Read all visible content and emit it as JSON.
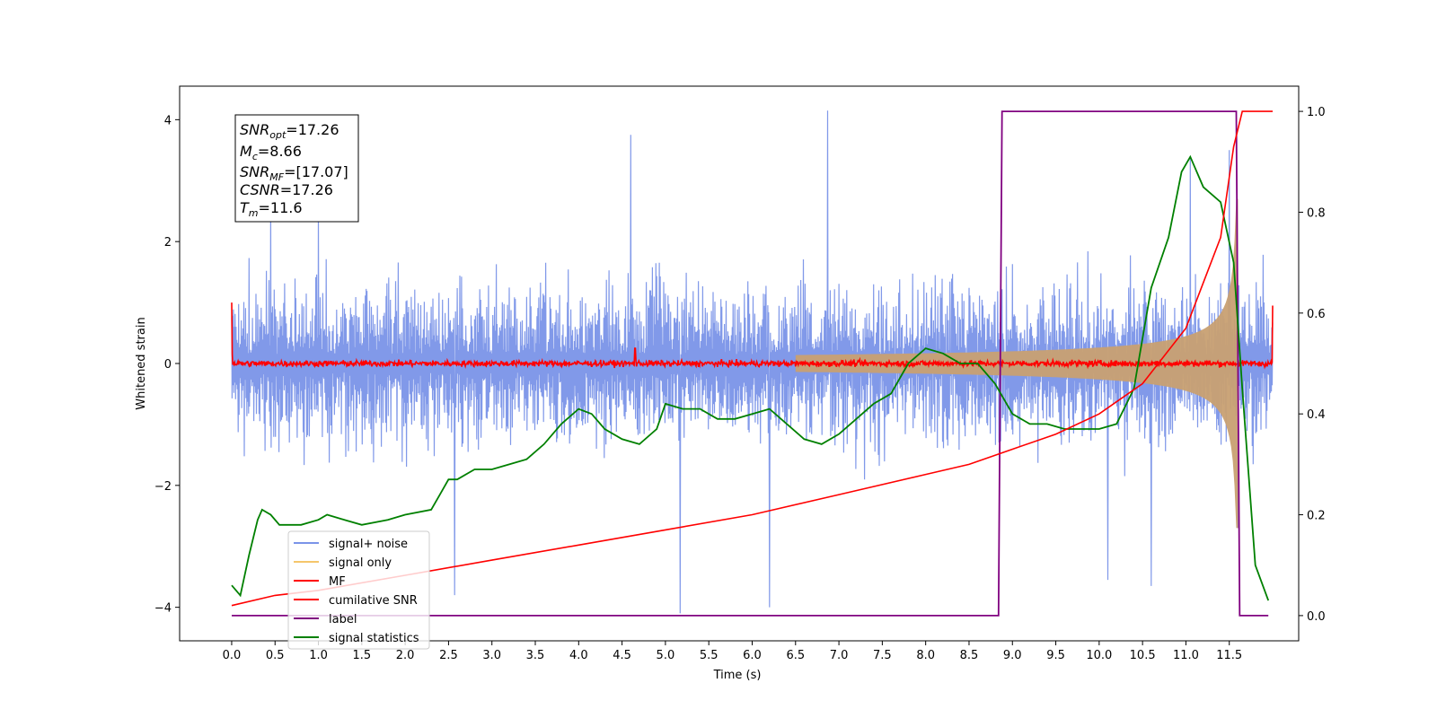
{
  "chart_data": {
    "type": "line",
    "title": "",
    "xlabel": "Time (s)",
    "ylabel": "Whitened strain",
    "xlim": [
      -0.6,
      12.3
    ],
    "ylim": [
      -4.55,
      4.55
    ],
    "y2lim": [
      -0.05,
      1.05
    ],
    "x_ticks": [
      "0.0",
      "0.5",
      "1.0",
      "1.5",
      "2.0",
      "2.5",
      "3.0",
      "3.5",
      "4.0",
      "4.5",
      "5.0",
      "5.5",
      "6.0",
      "6.5",
      "7.0",
      "7.5",
      "8.0",
      "8.5",
      "9.0",
      "9.5",
      "10.0",
      "10.5",
      "11.0",
      "11.5"
    ],
    "y_ticks": [
      "4",
      "2",
      "0",
      "−2",
      "−4"
    ],
    "y2_ticks": [
      "1.0",
      "0.8",
      "0.6",
      "0.4",
      "0.2",
      "0.0"
    ],
    "grid": false,
    "legend_position": "lower-left",
    "legend": [
      {
        "name": "signal+ noise",
        "color": "#7a94e8"
      },
      {
        "name": "signal only",
        "color": "#f5c66b"
      },
      {
        "name": "MF",
        "color": "#ff0000"
      },
      {
        "name": "cumilative SNR",
        "color": "#ff0000"
      },
      {
        "name": "label",
        "color": "#800080"
      },
      {
        "name": "signal statistics",
        "color": "#008000"
      }
    ],
    "annotation": {
      "lines": [
        {
          "sym": "SNR",
          "sub": "opt",
          "val": "=17.26"
        },
        {
          "sym": "M",
          "sub": "c",
          "val": "=8.66"
        },
        {
          "sym": "SNR",
          "sub": "MF",
          "val": "=[17.07]"
        },
        {
          "sym": "CSNR",
          "sub": "",
          "val": "=17.26"
        },
        {
          "sym": "T",
          "sub": "m",
          "val": "=11.6"
        }
      ]
    },
    "series": [
      {
        "name": "signal+ noise",
        "color": "#7a94e8",
        "axis": "left",
        "x_range": [
          0.0,
          12.0
        ],
        "band_lower": -1.6,
        "band_upper": 1.6,
        "peaks": [
          [
            0.45,
            2.6
          ],
          [
            1.0,
            2.5
          ],
          [
            4.6,
            3.75
          ],
          [
            6.87,
            4.15
          ],
          [
            11.5,
            3.5
          ],
          [
            11.05,
            3.4
          ]
        ],
        "troughs": [
          [
            5.17,
            -4.1
          ],
          [
            6.2,
            -4.0
          ],
          [
            2.57,
            -3.8
          ],
          [
            10.1,
            -3.55
          ],
          [
            10.6,
            -3.65
          ],
          [
            11.6,
            -2.7
          ]
        ]
      },
      {
        "name": "signal only",
        "color": "#c8a072",
        "axis": "left",
        "envelope": {
          "t_merge": 11.6,
          "amp_at_8": 0.08,
          "amp_at_11": 0.45,
          "amp_max": 2.7
        }
      },
      {
        "name": "MF",
        "color": "#ff0000",
        "axis": "left",
        "x_range": [
          0.0,
          12.0
        ],
        "baseline": 0.0,
        "noise_amp": 0.07,
        "edge_values": [
          [
            0.0,
            1.0
          ],
          [
            12.0,
            0.95
          ]
        ]
      },
      {
        "name": "cumilative SNR",
        "color": "#ff0000",
        "axis": "right",
        "x": [
          0.0,
          0.5,
          1.0,
          2.0,
          3.0,
          4.0,
          5.0,
          6.0,
          7.0,
          8.0,
          8.5,
          9.0,
          9.5,
          10.0,
          10.5,
          11.0,
          11.4,
          11.55,
          11.65,
          12.0
        ],
        "values": [
          0.02,
          0.04,
          0.05,
          0.08,
          0.11,
          0.14,
          0.17,
          0.2,
          0.24,
          0.28,
          0.3,
          0.33,
          0.36,
          0.4,
          0.46,
          0.57,
          0.75,
          0.93,
          1.0,
          1.0
        ]
      },
      {
        "name": "label",
        "color": "#800080",
        "axis": "right",
        "x": [
          0.0,
          8.84,
          8.88,
          11.58,
          11.62,
          11.95
        ],
        "values": [
          0.0,
          0.0,
          1.0,
          1.0,
          0.0,
          0.0
        ]
      },
      {
        "name": "signal statistics",
        "color": "#008000",
        "axis": "right",
        "x": [
          0.0,
          0.1,
          0.2,
          0.3,
          0.35,
          0.45,
          0.55,
          0.6,
          0.7,
          0.8,
          1.0,
          1.1,
          1.3,
          1.5,
          1.8,
          2.0,
          2.3,
          2.4,
          2.5,
          2.6,
          2.8,
          3.0,
          3.2,
          3.4,
          3.6,
          3.8,
          4.0,
          4.15,
          4.3,
          4.5,
          4.7,
          4.9,
          5.0,
          5.2,
          5.4,
          5.6,
          5.8,
          6.0,
          6.2,
          6.4,
          6.6,
          6.8,
          7.0,
          7.2,
          7.4,
          7.6,
          7.8,
          8.0,
          8.2,
          8.4,
          8.6,
          8.8,
          9.0,
          9.2,
          9.4,
          9.6,
          9.8,
          10.0,
          10.2,
          10.4,
          10.6,
          10.8,
          10.95,
          11.05,
          11.2,
          11.4,
          11.55,
          11.65,
          11.8,
          11.95
        ],
        "values": [
          0.06,
          0.04,
          0.12,
          0.19,
          0.21,
          0.2,
          0.18,
          0.18,
          0.18,
          0.18,
          0.19,
          0.2,
          0.19,
          0.18,
          0.19,
          0.2,
          0.21,
          0.24,
          0.27,
          0.27,
          0.29,
          0.29,
          0.3,
          0.31,
          0.34,
          0.38,
          0.41,
          0.4,
          0.37,
          0.35,
          0.34,
          0.37,
          0.42,
          0.41,
          0.41,
          0.39,
          0.39,
          0.4,
          0.41,
          0.38,
          0.35,
          0.34,
          0.36,
          0.39,
          0.42,
          0.44,
          0.5,
          0.53,
          0.52,
          0.5,
          0.5,
          0.46,
          0.4,
          0.38,
          0.38,
          0.37,
          0.37,
          0.37,
          0.38,
          0.45,
          0.65,
          0.75,
          0.88,
          0.91,
          0.85,
          0.82,
          0.7,
          0.45,
          0.1,
          0.03
        ]
      }
    ]
  }
}
